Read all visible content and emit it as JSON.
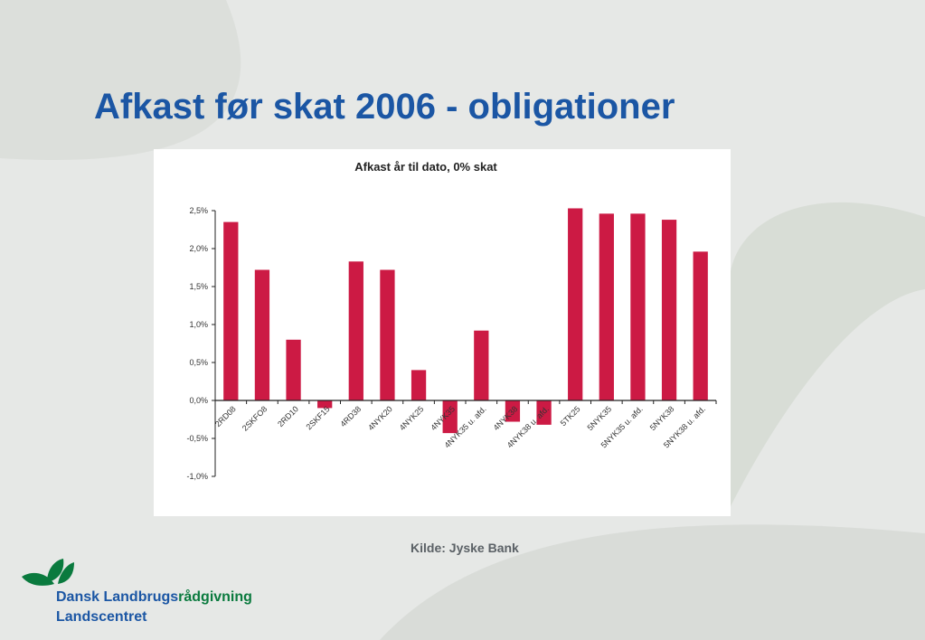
{
  "slide": {
    "title": "Afkast før skat 2006 - obligationer",
    "source": "Kilde: Jyske Bank"
  },
  "brand": {
    "name_part1": "Dansk Landbrugs",
    "name_part2": "rådgivning",
    "subtitle": "Landscentret",
    "logo_icon": "leaf-logo-icon",
    "colors": {
      "blue": "#1b56a4",
      "green": "#0a7a3e"
    }
  },
  "chart_data": {
    "type": "bar",
    "title": "Afkast år til dato, 0% skat",
    "xlabel": "",
    "ylabel": "",
    "ylim": [
      -1.0,
      2.5
    ],
    "yticks": [
      2.5,
      2.0,
      1.5,
      1.0,
      0.5,
      0.0,
      -0.5,
      -1.0
    ],
    "ytick_labels": [
      "2,5%",
      "2,0%",
      "1,5%",
      "1,0%",
      "0,5%",
      "0,0%",
      "-0,5%",
      "-1,0%"
    ],
    "grid": false,
    "bar_color": "#cc1a44",
    "categories": [
      "2RD08",
      "2SKFO8",
      "2RD10",
      "2SKF15",
      "4RD38",
      "4NYK20",
      "4NYK25",
      "4NYK35",
      "4NYK35 u. afd.",
      "4NYK38",
      "4NYK38 u. afd.",
      "5TK25",
      "5NYK35",
      "5NYK35 u. afd.",
      "5NYK38",
      "5NYK38 u. afd."
    ],
    "values": [
      2.35,
      1.72,
      0.8,
      -0.1,
      1.83,
      1.72,
      0.4,
      -0.43,
      0.92,
      -0.28,
      -0.32,
      2.53,
      2.46,
      2.46,
      2.38,
      1.96
    ]
  }
}
